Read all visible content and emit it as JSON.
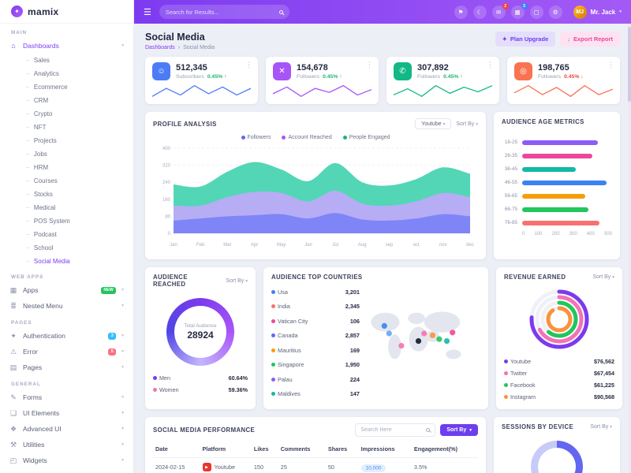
{
  "brand": {
    "name": "mamix"
  },
  "header": {
    "search_placeholder": "Search for Results...",
    "icons": [
      {
        "name": "flag-icon"
      },
      {
        "name": "theme-moon-icon"
      },
      {
        "name": "messages-icon",
        "badge": "2",
        "badge_color": "#ef4444"
      },
      {
        "name": "apps-grid-icon",
        "badge": "5",
        "badge_color": "#3b82f6"
      },
      {
        "name": "fullscreen-icon"
      },
      {
        "name": "settings-icon"
      }
    ],
    "user": {
      "name": "Mr. Jack"
    }
  },
  "sidebar": {
    "sections": [
      {
        "label": "MAIN",
        "items": [
          {
            "label": "Dashboards",
            "icon": "home-icon",
            "active": true,
            "expanded": true,
            "children": [
              {
                "label": "Sales"
              },
              {
                "label": "Analytics"
              },
              {
                "label": "Ecommerce"
              },
              {
                "label": "CRM"
              },
              {
                "label": "Crypto"
              },
              {
                "label": "NFT"
              },
              {
                "label": "Projects"
              },
              {
                "label": "Jobs"
              },
              {
                "label": "HRM"
              },
              {
                "label": "Courses"
              },
              {
                "label": "Stocks"
              },
              {
                "label": "Medical"
              },
              {
                "label": "POS System"
              },
              {
                "label": "Podcast"
              },
              {
                "label": "School"
              },
              {
                "label": "Social Media",
                "active": true
              }
            ]
          }
        ]
      },
      {
        "label": "WEB APPS",
        "items": [
          {
            "label": "Apps",
            "icon": "apps-icon",
            "badge": "NEW",
            "badge_color": "#22c55e"
          },
          {
            "label": "Nested Menu",
            "icon": "nested-menu-icon"
          }
        ]
      },
      {
        "label": "PAGES",
        "items": [
          {
            "label": "Authentication",
            "icon": "authentication-icon",
            "badge": "3",
            "badge_color": "#38bdf8"
          },
          {
            "label": "Error",
            "icon": "error-icon",
            "badge": "5",
            "badge_color": "#fb7185"
          },
          {
            "label": "Pages",
            "icon": "pages-icon"
          }
        ]
      },
      {
        "label": "GENERAL",
        "items": [
          {
            "label": "Forms",
            "icon": "forms-icon"
          },
          {
            "label": "UI Elements",
            "icon": "ui-elements-icon"
          },
          {
            "label": "Advanced UI",
            "icon": "advanced-ui-icon"
          },
          {
            "label": "Utilities",
            "icon": "utilities-icon"
          },
          {
            "label": "Widgets",
            "icon": "widgets-icon"
          }
        ]
      }
    ]
  },
  "page": {
    "title": "Social Media",
    "breadcrumb": [
      "Dashboards",
      "Social Media"
    ],
    "actions": [
      {
        "label": "Plan Upgrade",
        "style": "indigo",
        "icon": "upgrade-icon"
      },
      {
        "label": "Export Report",
        "style": "pink",
        "icon": "export-icon"
      }
    ]
  },
  "stats": [
    {
      "value": "512,345",
      "label": "Subscribers",
      "change": "0.45%",
      "direction": "up",
      "color": "#4c7cf5",
      "icon": "user-icon",
      "spark": [
        6,
        12,
        7,
        14,
        8,
        13,
        7,
        12
      ]
    },
    {
      "value": "154,678",
      "label": "Followers",
      "change": "0.45%",
      "direction": "up",
      "color": "#a855f7",
      "icon": "x-icon",
      "spark": [
        8,
        13,
        6,
        12,
        9,
        14,
        7,
        11
      ]
    },
    {
      "value": "307,892",
      "label": "Followers",
      "change": "0.45%",
      "direction": "up",
      "color": "#12b886",
      "icon": "call-icon",
      "spark": [
        7,
        11,
        6,
        13,
        8,
        12,
        9,
        13
      ]
    },
    {
      "value": "198,765",
      "label": "Followers",
      "change": "0.45%",
      "direction": "down",
      "color": "#f97352",
      "icon": "camera-icon",
      "spark": [
        9,
        13,
        8,
        12,
        7,
        13,
        8,
        11
      ]
    }
  ],
  "profile_analysis": {
    "title": "PROFILE ANALYSIS",
    "filter": "Youtube",
    "sort_label": "Sort By",
    "chart": {
      "type": "area",
      "x": [
        "Jan",
        "Feb",
        "Mar",
        "Apr",
        "May",
        "Jun",
        "Jul",
        "Aug",
        "sep",
        "oct",
        "nov",
        "dec"
      ],
      "ylim": [
        0,
        400
      ],
      "yticks": [
        0,
        80,
        160,
        240,
        320,
        400
      ],
      "series": [
        {
          "name": "Followers",
          "color": "#6366f1",
          "fill": "#7c83f7",
          "values": [
            60,
            70,
            80,
            85,
            90,
            70,
            95,
            65,
            60,
            70,
            90,
            80
          ]
        },
        {
          "name": "Account Reached",
          "color": "#a855f7",
          "fill": "#bcabf9",
          "values": [
            70,
            60,
            90,
            110,
            100,
            80,
            105,
            75,
            70,
            80,
            100,
            90
          ]
        },
        {
          "name": "People Engaged",
          "color": "#10b981",
          "fill": "#4ad4b2",
          "values": [
            100,
            90,
            120,
            140,
            110,
            95,
            130,
            100,
            95,
            105,
            120,
            110
          ]
        }
      ]
    }
  },
  "age_metrics": {
    "title": "AUDIENCE AGE METRICS",
    "chart": {
      "type": "bar",
      "categories": [
        "18-25",
        "26-35",
        "36-45",
        "46-55",
        "56-65",
        "66-75",
        "76-85"
      ],
      "values": [
        420,
        390,
        300,
        470,
        350,
        370,
        430
      ],
      "colors": [
        "#8b5cf6",
        "#ec4899",
        "#14b8a6",
        "#3b82f6",
        "#f59e0b",
        "#22c55e",
        "#f87171"
      ],
      "xticks": [
        0,
        100,
        200,
        300,
        400,
        500
      ],
      "xlim": [
        0,
        500
      ]
    }
  },
  "audience_reached": {
    "title": "AUDIENCE REACHED",
    "sort_label": "Sort By",
    "center_label": "Total Audience",
    "center_value": "28924",
    "ring_gradient": [
      "#4f46e5",
      "#7c3aed",
      "#a855f7",
      "#c4b5fd"
    ],
    "legend": [
      {
        "label": "Men",
        "value": "60.64%",
        "color": "#7c3aed"
      },
      {
        "label": "Women",
        "value": "59.36%",
        "color": "#f472b6"
      }
    ]
  },
  "top_countries": {
    "title": "AUDIENCE TOP COUNTRIES",
    "rows": [
      {
        "name": "Usa",
        "value": "3,201",
        "color": "#3b82f6"
      },
      {
        "name": "India",
        "value": "2,345",
        "color": "#f87171"
      },
      {
        "name": "Vatican City",
        "value": "106",
        "color": "#ec4899"
      },
      {
        "name": "Canada",
        "value": "2,857",
        "color": "#6366f1"
      },
      {
        "name": "Mauritius",
        "value": "169",
        "color": "#f59e0b"
      },
      {
        "name": "Singapore",
        "value": "1,950",
        "color": "#22c55e"
      },
      {
        "name": "Palau",
        "value": "224",
        "color": "#8b5cf6"
      },
      {
        "name": "Maldives",
        "value": "147",
        "color": "#14b8a6"
      }
    ]
  },
  "revenue": {
    "title": "REVENUE EARNED",
    "sort_label": "Sort By",
    "rows": [
      {
        "name": "Youtube",
        "value": "$76,562",
        "color": "#7c3aed",
        "pct": 76
      },
      {
        "name": "Twitter",
        "value": "$67,454",
        "color": "#f472b6",
        "pct": 67
      },
      {
        "name": "Facebook",
        "value": "$61,225",
        "color": "#22c55e",
        "pct": 61
      },
      {
        "name": "Instagram",
        "value": "$90,568",
        "color": "#fb923c",
        "pct": 90
      }
    ]
  },
  "performance": {
    "title": "SOCIAL MEDIA PERFORMANCE",
    "search_placeholder": "Search Here",
    "sort_label": "Sort By",
    "columns": [
      "Date",
      "Platform",
      "Likes",
      "Comments",
      "Shares",
      "Impressions",
      "Engagement(%)"
    ],
    "rows": [
      {
        "date": "2024-02-15",
        "platform": "Youtube",
        "likes": "150",
        "comments": "25",
        "shares": "50",
        "impressions": "10,000",
        "engagement": "3.5%"
      }
    ]
  },
  "sessions": {
    "title": "SESSIONS BY DEVICE",
    "sort_label": "Sort By",
    "segments": [
      {
        "color": "#6366f1",
        "pct": 62
      },
      {
        "color": "#c7cbf7",
        "pct": 38
      }
    ]
  }
}
